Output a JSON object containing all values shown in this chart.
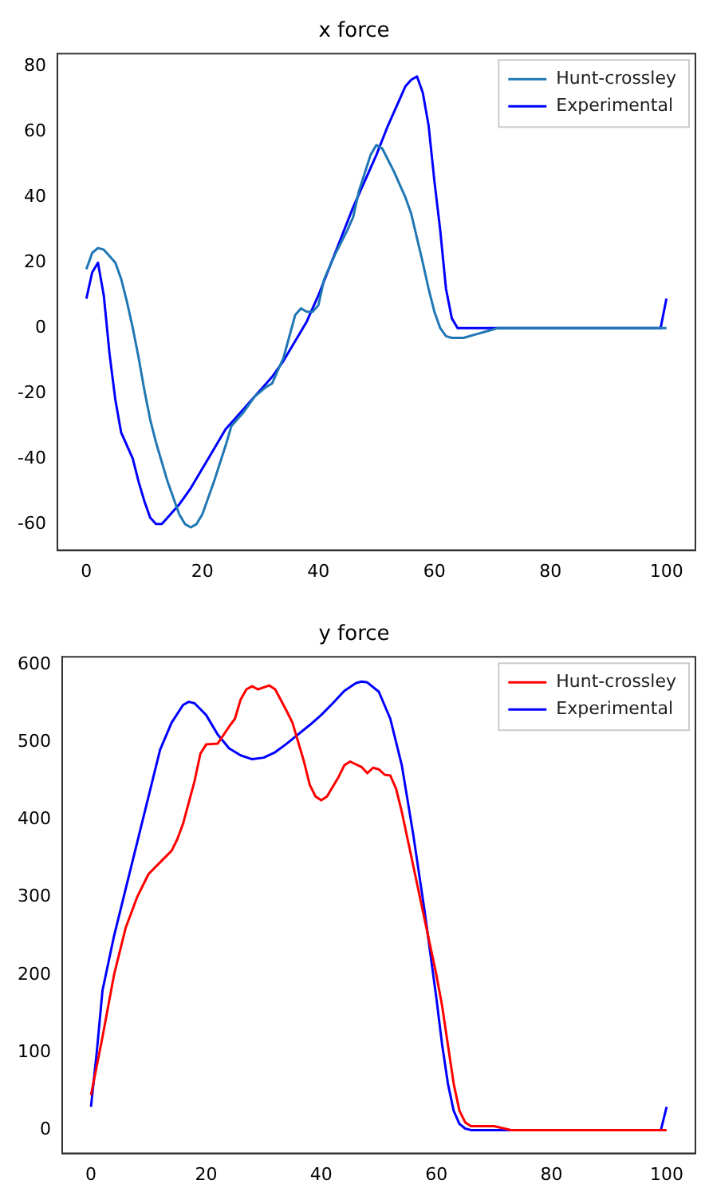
{
  "chart_data": [
    {
      "type": "line",
      "title": "x force",
      "xlim": [
        -5,
        105
      ],
      "xticks": [
        0,
        20,
        40,
        60,
        80,
        100
      ],
      "ylim": [
        -68,
        84
      ],
      "yticks": [
        -60,
        -40,
        -20,
        0,
        20,
        40,
        60,
        80
      ],
      "grid": false,
      "legend": "top right",
      "marker": "none",
      "series": [
        {
          "name": "Hunt-crossley",
          "color": "#1f77b4",
          "x": [
            0,
            1,
            2,
            3,
            4,
            5,
            6,
            7,
            8,
            9,
            10,
            11,
            12,
            14,
            16,
            17,
            18,
            19,
            20,
            22,
            24,
            25,
            27,
            29,
            31,
            32,
            34,
            36,
            37,
            38,
            39,
            40,
            41,
            43,
            45,
            46,
            47,
            49,
            50,
            51,
            53,
            55,
            56,
            58,
            59,
            60,
            61,
            62,
            63,
            65,
            67,
            69,
            71,
            100
          ],
          "values": [
            18,
            23,
            24.5,
            24,
            22,
            20,
            15,
            8,
            0,
            -9,
            -19,
            -28,
            -35,
            -47,
            -57,
            -60,
            -61,
            -60,
            -57,
            -47,
            -36,
            -30,
            -26,
            -21,
            -18,
            -17,
            -9,
            4,
            6,
            5,
            5,
            7,
            15,
            23,
            30,
            34,
            42,
            53,
            56,
            55,
            48,
            40,
            35,
            20,
            12,
            5,
            0,
            -2.5,
            -3,
            -3,
            -2,
            -1,
            0,
            0
          ]
        },
        {
          "name": "Experimental",
          "color": "#0000ff",
          "x": [
            0,
            1,
            2,
            3,
            4,
            5,
            6,
            8,
            9,
            10,
            11,
            12,
            13,
            14,
            16,
            18,
            20,
            22,
            24,
            26,
            28,
            30,
            32,
            34,
            36,
            38,
            40,
            42,
            44,
            46,
            48,
            50,
            52,
            54,
            55,
            56,
            57,
            58,
            59,
            60,
            61,
            62,
            63,
            64,
            99,
            100
          ],
          "values": [
            9,
            17,
            20,
            10,
            -8,
            -22,
            -32,
            -40,
            -47,
            -53,
            -58,
            -60,
            -60,
            -58,
            -54,
            -49,
            -43,
            -37,
            -31,
            -27,
            -23,
            -19,
            -15,
            -10,
            -4,
            2,
            10,
            19,
            28,
            37,
            45,
            53,
            62,
            70,
            74,
            76,
            77,
            72,
            62,
            45,
            30,
            12,
            3,
            0,
            0,
            9
          ]
        }
      ]
    },
    {
      "type": "line",
      "title": "y force",
      "xlim": [
        -5,
        105
      ],
      "xticks": [
        0,
        20,
        40,
        60,
        80,
        100
      ],
      "ylim": [
        -30,
        610
      ],
      "yticks": [
        0,
        100,
        200,
        300,
        400,
        500,
        600
      ],
      "grid": false,
      "legend": "top right",
      "marker": "none",
      "series": [
        {
          "name": "Hunt-crossley",
          "color": "#ff0000",
          "x": [
            0,
            2,
            4,
            6,
            8,
            10,
            12,
            14,
            15,
            16,
            18,
            19,
            20,
            22,
            24,
            25,
            26,
            27,
            28,
            29,
            31,
            32,
            34,
            35,
            37,
            38,
            39,
            40,
            41,
            43,
            44,
            45,
            47,
            48,
            49,
            50,
            51,
            52,
            53,
            54,
            55,
            56,
            58,
            60,
            61,
            62,
            63,
            64,
            65,
            66,
            70,
            73,
            100
          ],
          "values": [
            45,
            120,
            200,
            260,
            300,
            330,
            345,
            360,
            375,
            395,
            450,
            485,
            497,
            498,
            520,
            530,
            555,
            568,
            572,
            568,
            573,
            568,
            540,
            525,
            475,
            445,
            430,
            425,
            430,
            455,
            470,
            475,
            468,
            460,
            467,
            465,
            458,
            457,
            440,
            410,
            375,
            340,
            270,
            200,
            160,
            110,
            60,
            25,
            10,
            5,
            5,
            0,
            0
          ]
        },
        {
          "name": "Experimental",
          "color": "#0000ff",
          "x": [
            0,
            1,
            2,
            4,
            6,
            8,
            10,
            12,
            14,
            16,
            17,
            18,
            20,
            22,
            24,
            26,
            28,
            30,
            32,
            34,
            36,
            38,
            40,
            42,
            44,
            46,
            47,
            48,
            50,
            52,
            54,
            56,
            58,
            60,
            61,
            62,
            63,
            64,
            65,
            66,
            99,
            100
          ],
          "values": [
            30,
            100,
            180,
            250,
            310,
            370,
            430,
            490,
            525,
            548,
            552,
            550,
            535,
            510,
            492,
            483,
            478,
            480,
            487,
            498,
            510,
            522,
            535,
            550,
            566,
            576,
            578,
            577,
            565,
            530,
            470,
            380,
            280,
            170,
            110,
            60,
            25,
            8,
            2,
            0,
            0,
            30
          ]
        }
      ]
    }
  ]
}
